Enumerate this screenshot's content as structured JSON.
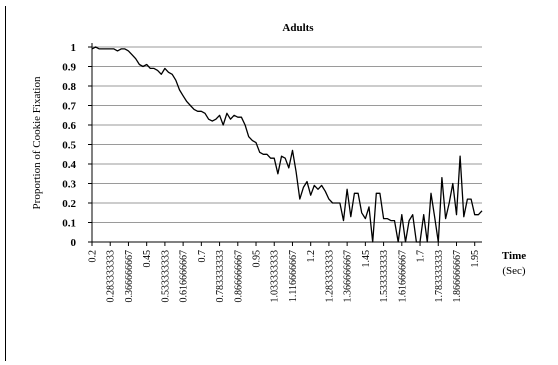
{
  "chart_data": {
    "type": "line",
    "title": "Adults",
    "ylabel": "Proportion of Cookie Fixation",
    "xlabel_lines": [
      "Time",
      "(Sec)"
    ],
    "ylim": [
      0,
      1
    ],
    "xlim": [
      0.2,
      1.9833333
    ],
    "y_ticks": [
      0,
      0.1,
      0.2,
      0.3,
      0.4,
      0.5,
      0.6,
      0.7,
      0.8,
      0.9,
      1
    ],
    "y_tick_labels": [
      "0",
      "0.1",
      "0.2",
      "0.3",
      "0.4",
      "0.5",
      "0.6",
      "0.7",
      "0.8",
      "0.9",
      "1"
    ],
    "x_ticks": [
      0.2,
      0.2833333,
      0.3666667,
      0.45,
      0.5333333,
      0.6166667,
      0.7,
      0.7833333,
      0.8666667,
      0.95,
      1.0333333,
      1.1166667,
      1.2,
      1.2833333,
      1.3666667,
      1.45,
      1.5333333,
      1.6166667,
      1.7,
      1.7833333,
      1.8666667,
      1.95
    ],
    "x_tick_labels": [
      "0.2",
      "0.283333333",
      "0.366666667",
      "0.45",
      "0.533333333",
      "0.616666667",
      "0.7",
      "0.783333333",
      "0.866666667",
      "0.95",
      "1.033333333",
      "1.116666667",
      "1.2",
      "1.283333333",
      "1.366666667",
      "1.45",
      "1.533333333",
      "1.616666667",
      "1.7",
      "1.783333333",
      "1.866666667",
      "1.95"
    ],
    "grid": true,
    "line_color": "#000000",
    "series": [
      {
        "x": [
          0.2,
          0.2166667,
          0.2333333,
          0.25,
          0.2666667,
          0.2833333,
          0.3,
          0.3166667,
          0.3333333,
          0.35,
          0.3666667,
          0.3833333,
          0.4,
          0.4166667,
          0.4333333,
          0.45,
          0.4666667,
          0.4833333,
          0.5,
          0.5166667,
          0.5333333,
          0.55,
          0.5666667,
          0.5833333,
          0.6,
          0.6166667,
          0.6333333,
          0.65,
          0.6666667,
          0.6833333,
          0.7,
          0.7166667,
          0.7333333,
          0.75,
          0.7666667,
          0.7833333,
          0.8,
          0.8166667,
          0.8333333,
          0.85,
          0.8666667,
          0.8833333,
          0.9,
          0.9166667,
          0.9333333,
          0.95,
          0.9666667,
          0.9833333,
          1.0,
          1.0166667,
          1.0333333,
          1.05,
          1.0666667,
          1.0833333,
          1.1,
          1.1166667,
          1.1333333,
          1.15,
          1.1666667,
          1.1833333,
          1.2,
          1.2166667,
          1.2333333,
          1.25,
          1.2666667,
          1.2833333,
          1.3,
          1.3166667,
          1.3333333,
          1.35,
          1.3666667,
          1.3833333,
          1.4,
          1.4166667,
          1.4333333,
          1.45,
          1.4666667,
          1.4833333,
          1.5,
          1.5166667,
          1.5333333,
          1.55,
          1.5666667,
          1.5833333,
          1.6,
          1.6166667,
          1.6333333,
          1.65,
          1.6666667,
          1.6833333,
          1.7,
          1.7166667,
          1.7333333,
          1.75,
          1.7666667,
          1.7833333,
          1.8,
          1.8166667,
          1.8333333,
          1.85,
          1.8666667,
          1.8833333,
          1.9,
          1.9166667,
          1.9333333,
          1.95,
          1.9666667,
          1.9833333
        ],
        "y": [
          0.99,
          1.0,
          0.99,
          0.99,
          0.99,
          0.99,
          0.99,
          0.98,
          0.99,
          0.99,
          0.98,
          0.96,
          0.94,
          0.91,
          0.9,
          0.91,
          0.89,
          0.89,
          0.88,
          0.86,
          0.89,
          0.87,
          0.86,
          0.83,
          0.78,
          0.75,
          0.72,
          0.7,
          0.68,
          0.67,
          0.67,
          0.66,
          0.63,
          0.62,
          0.63,
          0.65,
          0.6,
          0.66,
          0.63,
          0.65,
          0.64,
          0.64,
          0.6,
          0.54,
          0.52,
          0.51,
          0.46,
          0.45,
          0.45,
          0.43,
          0.43,
          0.35,
          0.44,
          0.43,
          0.38,
          0.47,
          0.36,
          0.22,
          0.28,
          0.31,
          0.24,
          0.29,
          0.27,
          0.29,
          0.26,
          0.22,
          0.2,
          0.2,
          0.2,
          0.11,
          0.27,
          0.13,
          0.25,
          0.25,
          0.15,
          0.12,
          0.18,
          0.0,
          0.25,
          0.25,
          0.12,
          0.12,
          0.11,
          0.11,
          0.0,
          0.14,
          0.0,
          0.11,
          0.14,
          0.0,
          0.0,
          0.14,
          0.0,
          0.25,
          0.13,
          0.0,
          0.33,
          0.12,
          0.2,
          0.3,
          0.14,
          0.44,
          0.13,
          0.22,
          0.22,
          0.14,
          0.14,
          0.16
        ]
      }
    ]
  }
}
